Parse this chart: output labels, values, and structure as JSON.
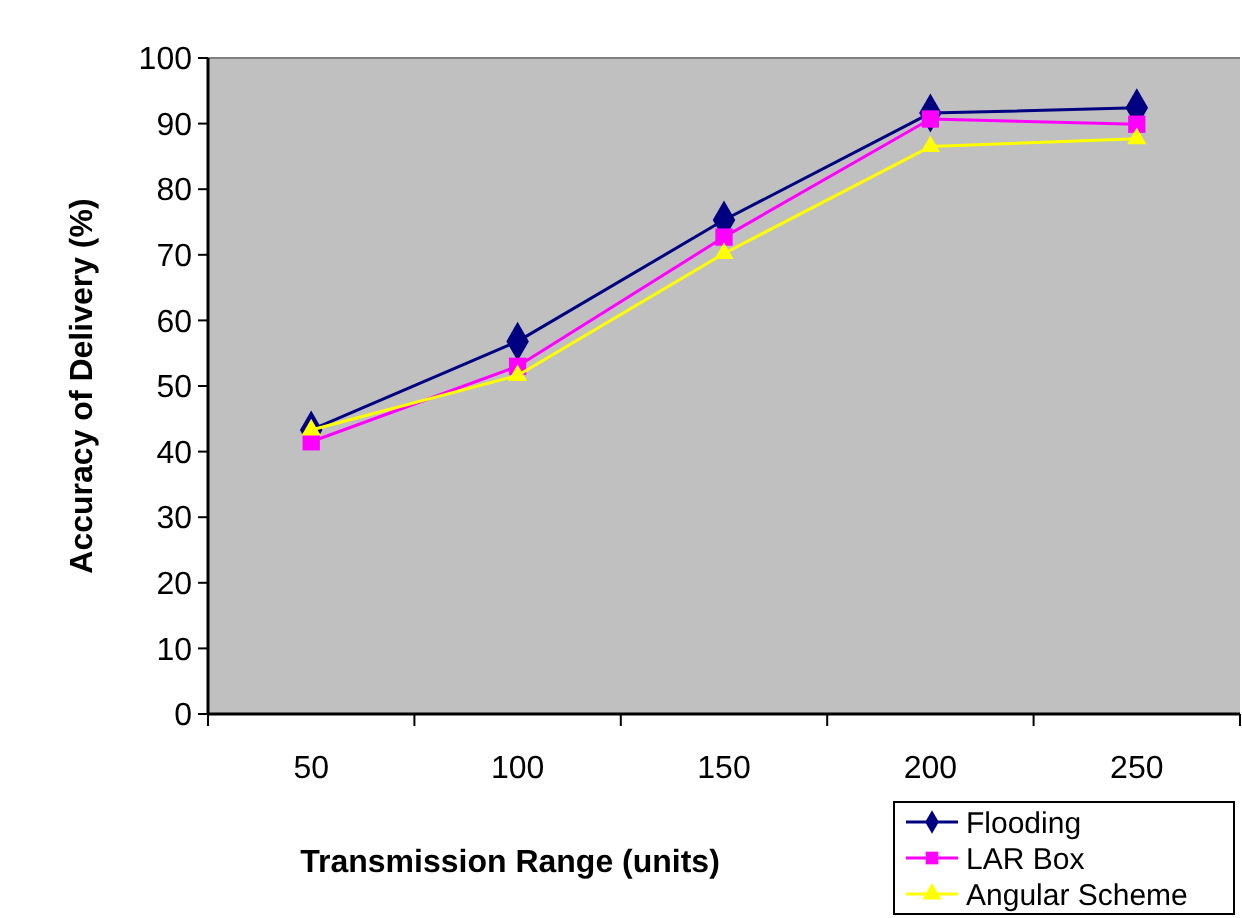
{
  "chart_data": {
    "type": "line",
    "xlabel": "Transmission Range (units)",
    "ylabel": "Accuracy of Delivery (%)",
    "categories": [
      "50",
      "100",
      "150",
      "200",
      "250"
    ],
    "ylim": [
      0,
      100
    ],
    "yticks": [
      0,
      10,
      20,
      30,
      40,
      50,
      60,
      70,
      80,
      90,
      100
    ],
    "grid": false,
    "legend": "bottom right",
    "series": [
      {
        "name": "Flooding",
        "color": "#000080",
        "marker": "diamond",
        "values": [
          43.3,
          56.8,
          75.3,
          91.6,
          92.4
        ]
      },
      {
        "name": "LAR Box",
        "color": "#ff00ff",
        "marker": "square",
        "values": [
          41.5,
          53,
          72.7,
          90.7,
          89.9
        ]
      },
      {
        "name": "Angular Scheme",
        "color": "#ffff00",
        "marker": "triangle",
        "values": [
          43.3,
          51.6,
          70.2,
          86.5,
          87.7
        ]
      }
    ]
  }
}
